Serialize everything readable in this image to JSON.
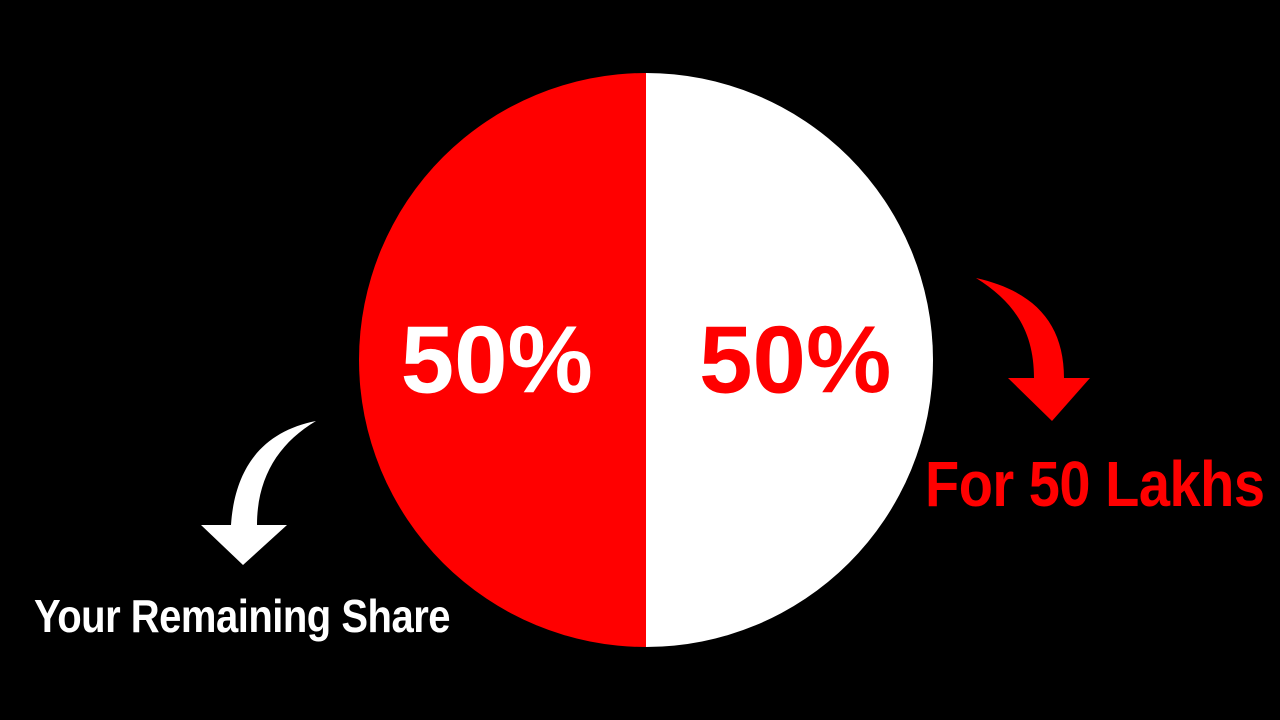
{
  "chart_data": {
    "type": "pie",
    "slices": [
      {
        "label": "50%",
        "value": 50,
        "color": "#ff0000",
        "label_color": "#ffffff"
      },
      {
        "label": "50%",
        "value": 50,
        "color": "#ffffff",
        "label_color": "#ff0000"
      }
    ],
    "background": "#000000"
  },
  "callouts": {
    "left": {
      "text": "Your Remaining Share",
      "color": "#ffffff",
      "arrow_color": "#ffffff",
      "arrow_icon": "curved-down-arrow-icon"
    },
    "right": {
      "text": "For 50 Lakhs",
      "color": "#ff0000",
      "arrow_color": "#ff0000",
      "arrow_icon": "curved-down-arrow-icon"
    }
  }
}
